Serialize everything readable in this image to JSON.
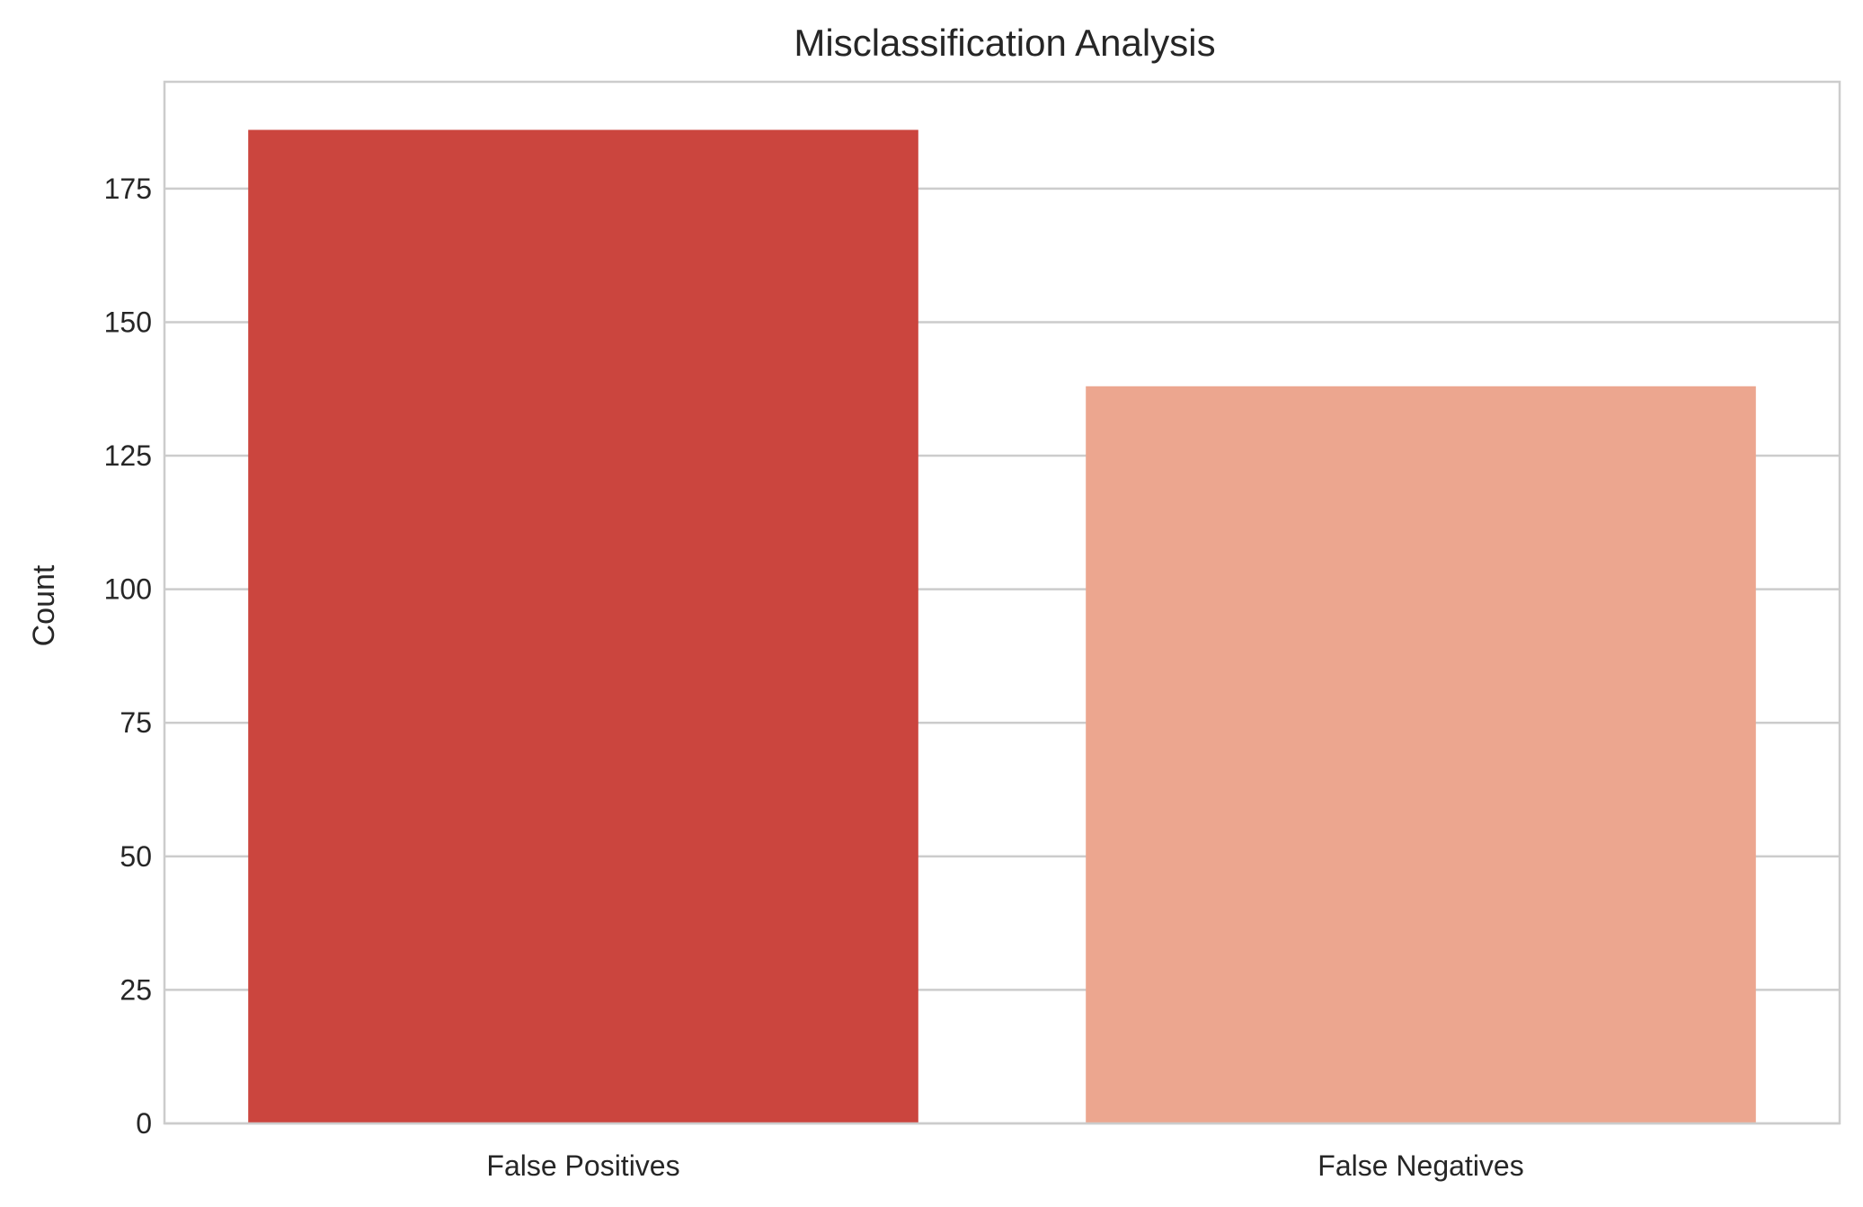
{
  "chart_data": {
    "type": "bar",
    "title": "Misclassification Analysis",
    "xlabel": "",
    "ylabel": "Count",
    "categories": [
      "False Positives",
      "False Negatives"
    ],
    "values": [
      186,
      138
    ],
    "colors": [
      "#cb453e",
      "#eca68f"
    ],
    "ylim": [
      0,
      195
    ],
    "yticks": [
      0,
      25,
      50,
      75,
      100,
      125,
      150,
      175
    ],
    "grid": "horizontal",
    "legend": "none"
  }
}
